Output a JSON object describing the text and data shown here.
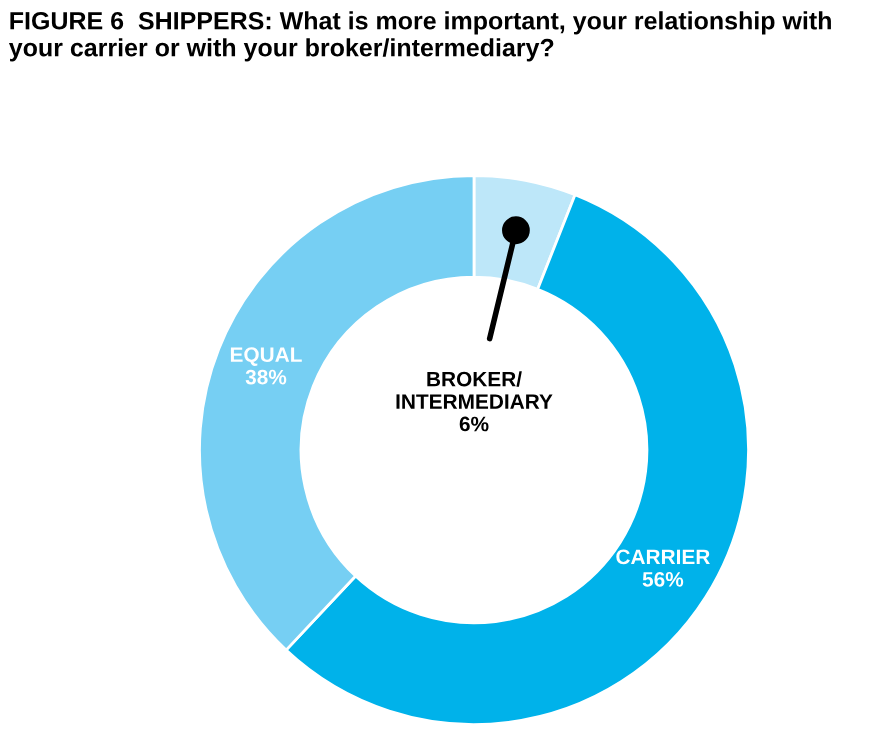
{
  "chart_data": {
    "type": "donut",
    "title": "FIGURE 6  SHIPPERS: What is more important, your relationship with your carrier or with your broker/intermediary?",
    "categories": [
      "BROKER/\nINTERMEDIARY",
      "CARRIER",
      "EQUAL"
    ],
    "values": [
      6,
      56,
      38
    ],
    "colors": [
      "#bde7f9",
      "#00b2ea",
      "#76cff3"
    ],
    "value_labels": [
      "6%",
      "56%",
      "38%"
    ]
  }
}
